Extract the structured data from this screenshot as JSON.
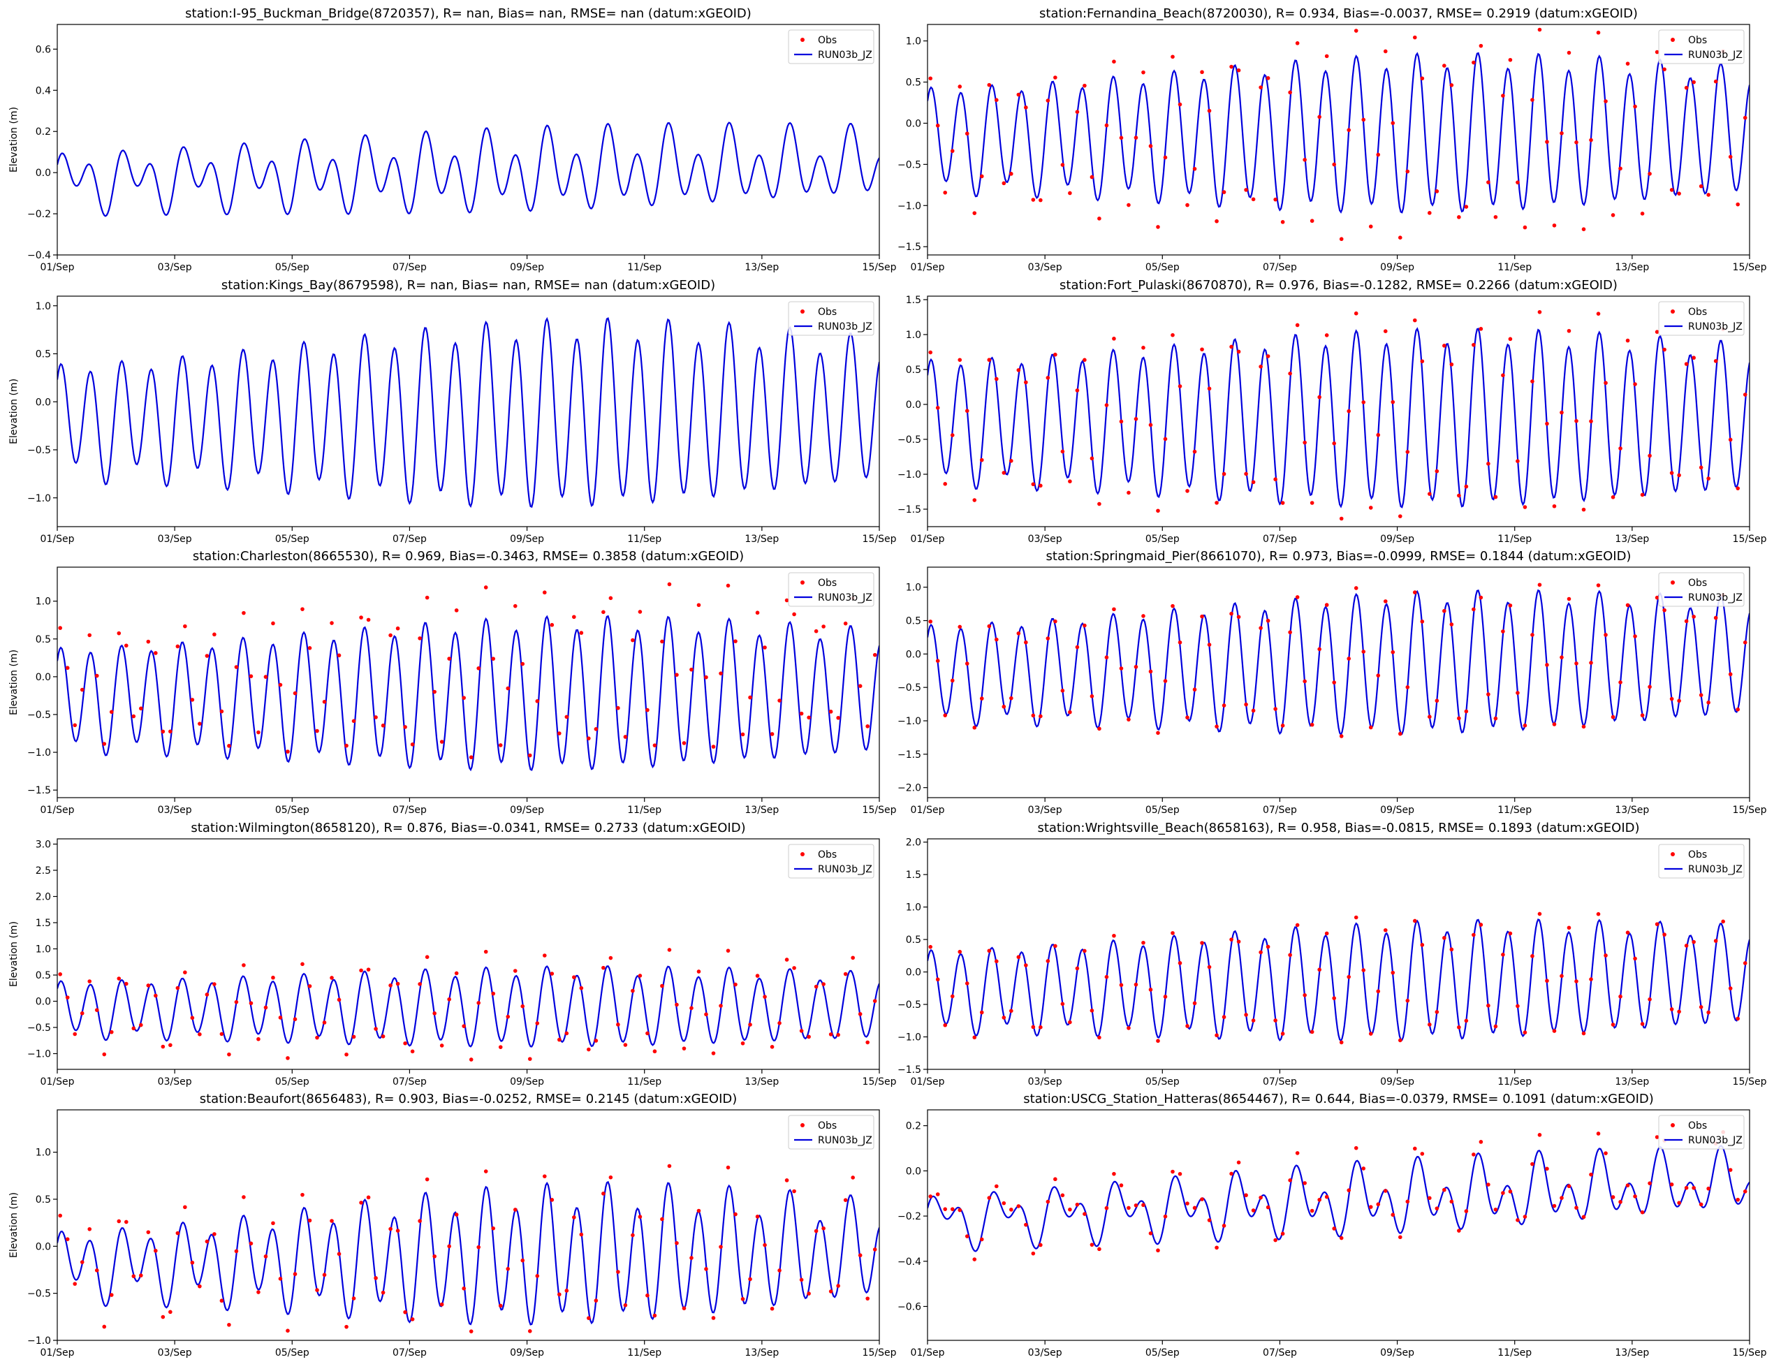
{
  "colors": {
    "obs": "#ff0000",
    "model": "#0000dd",
    "axis": "#000000"
  },
  "shared": {
    "xticks": [
      "01/Sep",
      "03/Sep",
      "05/Sep",
      "07/Sep",
      "09/Sep",
      "11/Sep",
      "13/Sep",
      "15/Sep"
    ],
    "xlim_days": [
      0,
      14
    ],
    "legend": {
      "obs": "Obs",
      "model": "RUN03b_JZ"
    },
    "ylabel": "Elevation (m)"
  },
  "chart_data": [
    {
      "type": "line",
      "title": "station:I-95_Buckman_Bridge(8720357), R=   nan, Bias=    nan, RMSE=    nan (datum:xGEOID)",
      "ylim": [
        -0.4,
        0.72
      ],
      "yticks": [
        "−0.4",
        "−0.2",
        "0.0",
        "0.2",
        "0.4",
        "0.6"
      ],
      "ytick_values": [
        -0.4,
        -0.2,
        0,
        0.2,
        0.4,
        0.6
      ],
      "has_obs": false,
      "series": [
        {
          "name": "RUN03b_JZ",
          "mean": [
            -0.04,
            0.04
          ],
          "amp": [
            0.1,
            0.15
          ],
          "shift": 0.08
        }
      ]
    },
    {
      "type": "line",
      "title": "station:Fernandina_Beach(8720030), R= 0.934, Bias=-0.0037, RMSE= 0.2919 (datum:xGEOID)",
      "ylim": [
        -1.6,
        1.2
      ],
      "yticks": [
        "−1.5",
        "−1.0",
        "−0.5",
        "0.0",
        "0.5",
        "1.0"
      ],
      "ytick_values": [
        -1.5,
        -1,
        -0.5,
        0,
        0.5,
        1
      ],
      "has_obs": true,
      "series": [
        {
          "name": "RUN03b_JZ",
          "mean": [
            -0.2,
            -0.1
          ],
          "amp": [
            0.6,
            0.9
          ],
          "shift": 0.1
        },
        {
          "name": "Obs",
          "mean": [
            -0.25,
            -0.1
          ],
          "amp": [
            0.75,
            1.2
          ],
          "shift": 0.15
        }
      ]
    },
    {
      "type": "line",
      "title": "station:Kings_Bay(8679598), R=   nan, Bias=    nan, RMSE=    nan (datum:xGEOID)",
      "ylim": [
        -1.3,
        1.1
      ],
      "yticks": [
        "−1.0",
        "−0.5",
        "0.0",
        "0.5",
        "1.0"
      ],
      "ytick_values": [
        -1,
        -0.5,
        0,
        0.5,
        1
      ],
      "has_obs": false,
      "series": [
        {
          "name": "RUN03b_JZ",
          "mean": [
            -0.2,
            -0.1
          ],
          "amp": [
            0.55,
            0.9
          ],
          "shift": 0.12
        }
      ]
    },
    {
      "type": "line",
      "title": "station:Fort_Pulaski(8670870), R= 0.976, Bias=-0.1282, RMSE= 0.2266 (datum:xGEOID)",
      "ylim": [
        -1.75,
        1.55
      ],
      "yticks": [
        "−1.5",
        "−1.0",
        "−0.5",
        "0.0",
        "0.5",
        "1.0",
        "1.5"
      ],
      "ytick_values": [
        -1.5,
        -1,
        -0.5,
        0,
        0.5,
        1,
        1.5
      ],
      "has_obs": true,
      "series": [
        {
          "name": "RUN03b_JZ",
          "mean": [
            -0.25,
            -0.2
          ],
          "amp": [
            0.85,
            1.2
          ],
          "shift": 0.12
        },
        {
          "name": "Obs",
          "mean": [
            -0.3,
            -0.1
          ],
          "amp": [
            1.0,
            1.4
          ],
          "shift": 0.15
        }
      ]
    },
    {
      "type": "line",
      "title": "station:Charleston(8665530), R= 0.969, Bias=-0.3463, RMSE= 0.3858 (datum:xGEOID)",
      "ylim": [
        -1.6,
        1.45
      ],
      "yticks": [
        "−1.5",
        "−1.0",
        "−0.5",
        "0.0",
        "0.5",
        "1.0"
      ],
      "ytick_values": [
        -1.5,
        -1,
        -0.5,
        0,
        0.5,
        1
      ],
      "has_obs": true,
      "series": [
        {
          "name": "RUN03b_JZ",
          "mean": [
            -0.3,
            -0.2
          ],
          "amp": [
            0.65,
            0.95
          ],
          "shift": 0.1
        },
        {
          "name": "Obs",
          "mean": [
            -0.1,
            0.15
          ],
          "amp": [
            0.7,
            1.05
          ],
          "shift": 0.15
        }
      ]
    },
    {
      "type": "line",
      "title": "station:Springmaid_Pier(8661070), R= 0.973, Bias=-0.0999, RMSE= 0.1844 (datum:xGEOID)",
      "ylim": [
        -2.15,
        1.3
      ],
      "yticks": [
        "−2.0",
        "−1.5",
        "−1.0",
        "−0.5",
        "0.0",
        "0.5",
        "1.0"
      ],
      "ytick_values": [
        -2,
        -1.5,
        -1,
        -0.5,
        0,
        0.5,
        1
      ],
      "has_obs": true,
      "series": [
        {
          "name": "RUN03b_JZ",
          "mean": [
            -0.3,
            -0.05
          ],
          "amp": [
            0.7,
            1.0
          ],
          "shift": 0.1
        },
        {
          "name": "Obs",
          "mean": [
            -0.3,
            0.0
          ],
          "amp": [
            0.75,
            1.05
          ],
          "shift": 0.12
        }
      ]
    },
    {
      "type": "line",
      "title": "station:Wilmington(8658120), R= 0.876, Bias=-0.0341, RMSE= 0.2733 (datum:xGEOID)",
      "ylim": [
        -1.3,
        3.1
      ],
      "yticks": [
        "−1.0",
        "−0.5",
        "0.0",
        "0.5",
        "1.0",
        "1.5",
        "2.0",
        "2.5",
        "3.0"
      ],
      "ytick_values": [
        -1,
        -0.5,
        0,
        0.5,
        1,
        1.5,
        2,
        2.5,
        3
      ],
      "has_obs": true,
      "series": [
        {
          "name": "RUN03b_JZ",
          "mean": [
            -0.15,
            -0.1
          ],
          "amp": [
            0.5,
            0.7
          ],
          "shift": 0.1
        },
        {
          "name": "Obs",
          "mean": [
            -0.2,
            -0.05
          ],
          "amp": [
            0.65,
            0.9
          ],
          "shift": 0.22
        }
      ]
    },
    {
      "type": "line",
      "title": "station:Wrightsville_Beach(8658163), R= 0.958, Bias=-0.0815, RMSE= 0.1893 (datum:xGEOID)",
      "ylim": [
        -1.5,
        2.05
      ],
      "yticks": [
        "−1.5",
        "−1.0",
        "−0.5",
        "0.0",
        "0.5",
        "1.0",
        "1.5",
        "2.0"
      ],
      "ytick_values": [
        -1.5,
        -1,
        -0.5,
        0,
        0.5,
        1,
        1.5,
        2
      ],
      "has_obs": true,
      "series": [
        {
          "name": "RUN03b_JZ",
          "mean": [
            -0.3,
            -0.05
          ],
          "amp": [
            0.6,
            0.85
          ],
          "shift": 0.1
        },
        {
          "name": "Obs",
          "mean": [
            -0.3,
            0.0
          ],
          "amp": [
            0.65,
            0.9
          ],
          "shift": 0.12
        }
      ]
    },
    {
      "type": "line",
      "title": "station:Beaufort(8656483), R= 0.903, Bias=-0.0252, RMSE= 0.2145 (datum:xGEOID)",
      "ylim": [
        -1.0,
        1.45
      ],
      "yticks": [
        "−1.0",
        "−0.5",
        "0.0",
        "0.5",
        "1.0"
      ],
      "ytick_values": [
        -1,
        -0.5,
        0,
        0.5,
        1
      ],
      "has_obs": true,
      "series": [
        {
          "name": "RUN03b_JZ",
          "mean": [
            -0.2,
            -0.05
          ],
          "amp": [
            0.3,
            0.65
          ],
          "shift": 0.15
        },
        {
          "name": "Obs",
          "mean": [
            -0.2,
            0.0
          ],
          "amp": [
            0.45,
            0.7
          ],
          "shift": 0.25
        }
      ]
    },
    {
      "type": "line",
      "title": "station:USCG_Station_Hatteras(8654467), R= 0.644, Bias=-0.0379, RMSE= 0.1091 (datum:xGEOID)",
      "ylim": [
        -0.75,
        0.27
      ],
      "yticks": [
        "−0.6",
        "−0.4",
        "−0.2",
        "0.0",
        "0.2"
      ],
      "ytick_values": [
        -0.6,
        -0.4,
        -0.2,
        0,
        0.2
      ],
      "has_obs": true,
      "series": [
        {
          "name": "RUN03b_JZ",
          "mean": [
            -0.22,
            -0.05
          ],
          "amp": [
            0.07,
            0.11
          ],
          "shift": 0.08
        },
        {
          "name": "Obs",
          "mean": [
            -0.22,
            -0.02
          ],
          "amp": [
            0.07,
            0.12
          ],
          "shift": 0.12
        }
      ]
    }
  ]
}
